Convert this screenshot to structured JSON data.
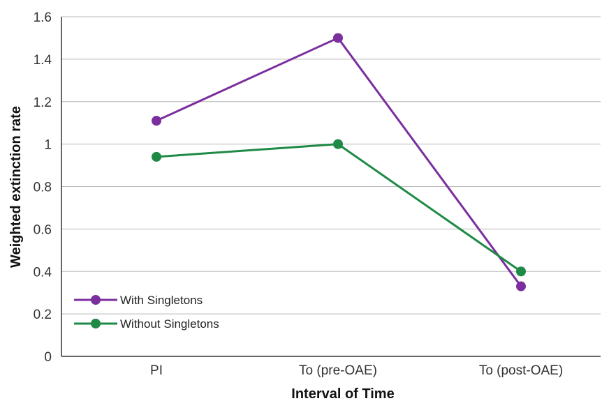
{
  "chart_data": {
    "type": "line",
    "title": "",
    "xlabel": "Interval of Time",
    "ylabel": "Weighted extinction rate",
    "categories": [
      "PI",
      "To (pre-OAE)",
      "To (post-OAE)"
    ],
    "ylim": [
      0,
      1.6
    ],
    "yticks": [
      0,
      0.2,
      0.4,
      0.6,
      0.8,
      1,
      1.2,
      1.4,
      1.6
    ],
    "ytick_labels": [
      "0",
      "0.2",
      "0.4",
      "0.6",
      "0.8",
      "1",
      "1.2",
      "1.4",
      "1.6"
    ],
    "grid": "horizontal",
    "legend_position": "bottom-left",
    "series": [
      {
        "name": "With Singletons",
        "color": "#7b2f9e",
        "values": [
          1.11,
          1.5,
          0.33
        ]
      },
      {
        "name": "Without Singletons",
        "color": "#1e8a45",
        "values": [
          0.94,
          1.0,
          0.4
        ]
      }
    ]
  }
}
